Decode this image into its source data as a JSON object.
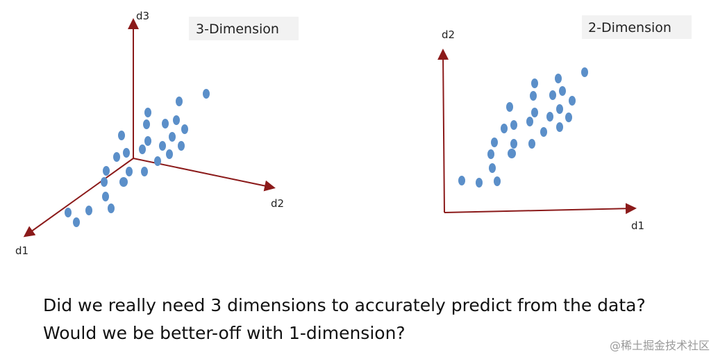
{
  "panels": [
    {
      "title": "3-Dimension",
      "axes": [
        "d3",
        "d2",
        "d1"
      ]
    },
    {
      "title": "2-Dimension",
      "axes": [
        "d2",
        "d1"
      ]
    }
  ],
  "caption": [
    "Did we really need 3 dimensions to accurately predict from the data?",
    "Would we be better-off with 1-dimension?"
  ],
  "watermark": "@稀土掘金技术社区"
}
